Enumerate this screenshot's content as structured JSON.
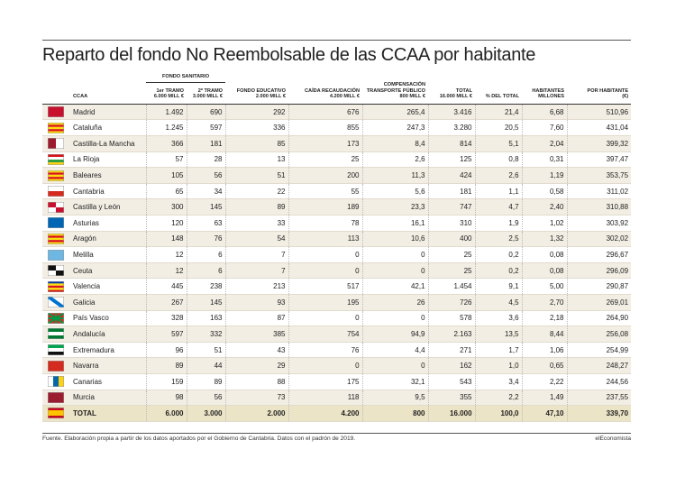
{
  "title": "Reparto del fondo No Reembolsable de las CCAA por habitante",
  "table": {
    "group_header": "FONDO SANITARIO",
    "columns": [
      [
        "CCAA"
      ],
      [
        "1er TRAMO",
        "6.000 MILL €"
      ],
      [
        "2º TRAMO",
        "3.000 MILL €"
      ],
      [
        "FONDO EDUCATIVO",
        "2.000 MILL €"
      ],
      [
        "CAÍDA RECAUDACIÓN",
        "4.200 MILL €"
      ],
      [
        "COMPENSACIÓN",
        "TRANSPORTE PÚBLICO",
        "800 MILL €"
      ],
      [
        "TOTAL",
        "16.000 MILL €"
      ],
      [
        "% DEL TOTAL"
      ],
      [
        "HABITANTES",
        "MILLONES"
      ],
      [
        "POR HABITANTE",
        "(€)"
      ]
    ],
    "rows": [
      [
        "Madrid",
        "1.492",
        "690",
        "292",
        "676",
        "265,4",
        "3.416",
        "21,4",
        "6,68",
        "510,96"
      ],
      [
        "Cataluña",
        "1.245",
        "597",
        "336",
        "855",
        "247,3",
        "3.280",
        "20,5",
        "7,60",
        "431,04"
      ],
      [
        "Castilla-La Mancha",
        "366",
        "181",
        "85",
        "173",
        "8,4",
        "814",
        "5,1",
        "2,04",
        "399,32"
      ],
      [
        "La Rioja",
        "57",
        "28",
        "13",
        "25",
        "2,6",
        "125",
        "0,8",
        "0,31",
        "397,47"
      ],
      [
        "Baleares",
        "105",
        "56",
        "51",
        "200",
        "11,3",
        "424",
        "2,6",
        "1,19",
        "353,75"
      ],
      [
        "Cantabria",
        "65",
        "34",
        "22",
        "55",
        "5,6",
        "181",
        "1,1",
        "0,58",
        "311,02"
      ],
      [
        "Castilla y León",
        "300",
        "145",
        "89",
        "189",
        "23,3",
        "747",
        "4,7",
        "2,40",
        "310,88"
      ],
      [
        "Asturias",
        "120",
        "63",
        "33",
        "78",
        "16,1",
        "310",
        "1,9",
        "1,02",
        "303,92"
      ],
      [
        "Aragón",
        "148",
        "76",
        "54",
        "113",
        "10,6",
        "400",
        "2,5",
        "1,32",
        "302,02"
      ],
      [
        "Melilla",
        "12",
        "6",
        "7",
        "0",
        "0",
        "25",
        "0,2",
        "0,08",
        "296,67"
      ],
      [
        "Ceuta",
        "12",
        "6",
        "7",
        "0",
        "0",
        "25",
        "0,2",
        "0,08",
        "296,09"
      ],
      [
        "Valencia",
        "445",
        "238",
        "213",
        "517",
        "42,1",
        "1.454",
        "9,1",
        "5,00",
        "290,87"
      ],
      [
        "Galicia",
        "267",
        "145",
        "93",
        "195",
        "26",
        "726",
        "4,5",
        "2,70",
        "269,01"
      ],
      [
        "País Vasco",
        "328",
        "163",
        "87",
        "0",
        "0",
        "578",
        "3,6",
        "2,18",
        "264,90"
      ],
      [
        "Andalucía",
        "597",
        "332",
        "385",
        "754",
        "94,9",
        "2.163",
        "13,5",
        "8,44",
        "256,08"
      ],
      [
        "Extremadura",
        "96",
        "51",
        "43",
        "76",
        "4,4",
        "271",
        "1,7",
        "1,06",
        "254,99"
      ],
      [
        "Navarra",
        "89",
        "44",
        "29",
        "0",
        "0",
        "162",
        "1,0",
        "0,65",
        "248,27"
      ],
      [
        "Canarias",
        "159",
        "89",
        "88",
        "175",
        "32,1",
        "543",
        "3,4",
        "2,22",
        "244,56"
      ],
      [
        "Murcia",
        "98",
        "56",
        "73",
        "118",
        "9,5",
        "355",
        "2,2",
        "1,49",
        "237,55"
      ]
    ],
    "total_row": [
      "TOTAL",
      "6.000",
      "3.000",
      "2.000",
      "4.200",
      "800",
      "16.000",
      "100,0",
      "47,10",
      "339,70"
    ]
  },
  "footer": {
    "source": "Fuente. Elaboración propia a partir de los datos aportados por el Gobierno de Cantabria. Datos con el padrón de 2019.",
    "brand": "elEconomista"
  }
}
